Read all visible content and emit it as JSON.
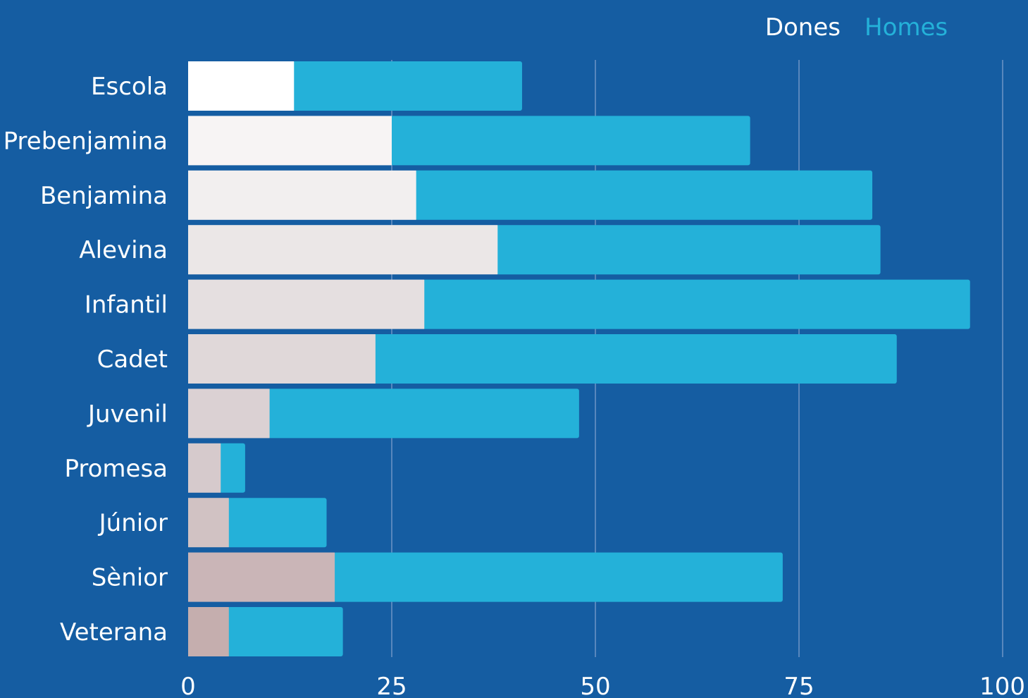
{
  "chart_data": {
    "type": "bar",
    "orientation": "horizontal",
    "stacked": true,
    "categories": [
      "Escola",
      "Prebenjamina",
      "Benjamina",
      "Alevina",
      "Infantil",
      "Cadet",
      "Juvenil",
      "Promesa",
      "Júnior",
      "Sènior",
      "Veterana"
    ],
    "series": [
      {
        "name": "Dones",
        "values": [
          13,
          25,
          28,
          38,
          29,
          23,
          10,
          4,
          5,
          18,
          5
        ],
        "colors": [
          "#ffffff",
          "#f7f4f4",
          "#f2efef",
          "#ebe7e7",
          "#e5dfe0",
          "#e0d8d9",
          "#dbd1d3",
          "#d6caccc",
          "#d1c2c3",
          "#cab5b7",
          "#c5aeae"
        ]
      },
      {
        "name": "Homes",
        "values": [
          28,
          44,
          56,
          47,
          67,
          64,
          38,
          3,
          12,
          55,
          14
        ],
        "color": "#24b1d9"
      }
    ],
    "xticks": [
      "0",
      "25",
      "50",
      "75",
      "100"
    ],
    "xlim": [
      0,
      100
    ],
    "grid": true,
    "legend_position": "top-right",
    "colors": {
      "background": "#155da2",
      "grid": "#6f95c6",
      "text": "#ffffff",
      "dones_legend": "#ffffff",
      "homes_legend": "#24b1d9"
    }
  }
}
